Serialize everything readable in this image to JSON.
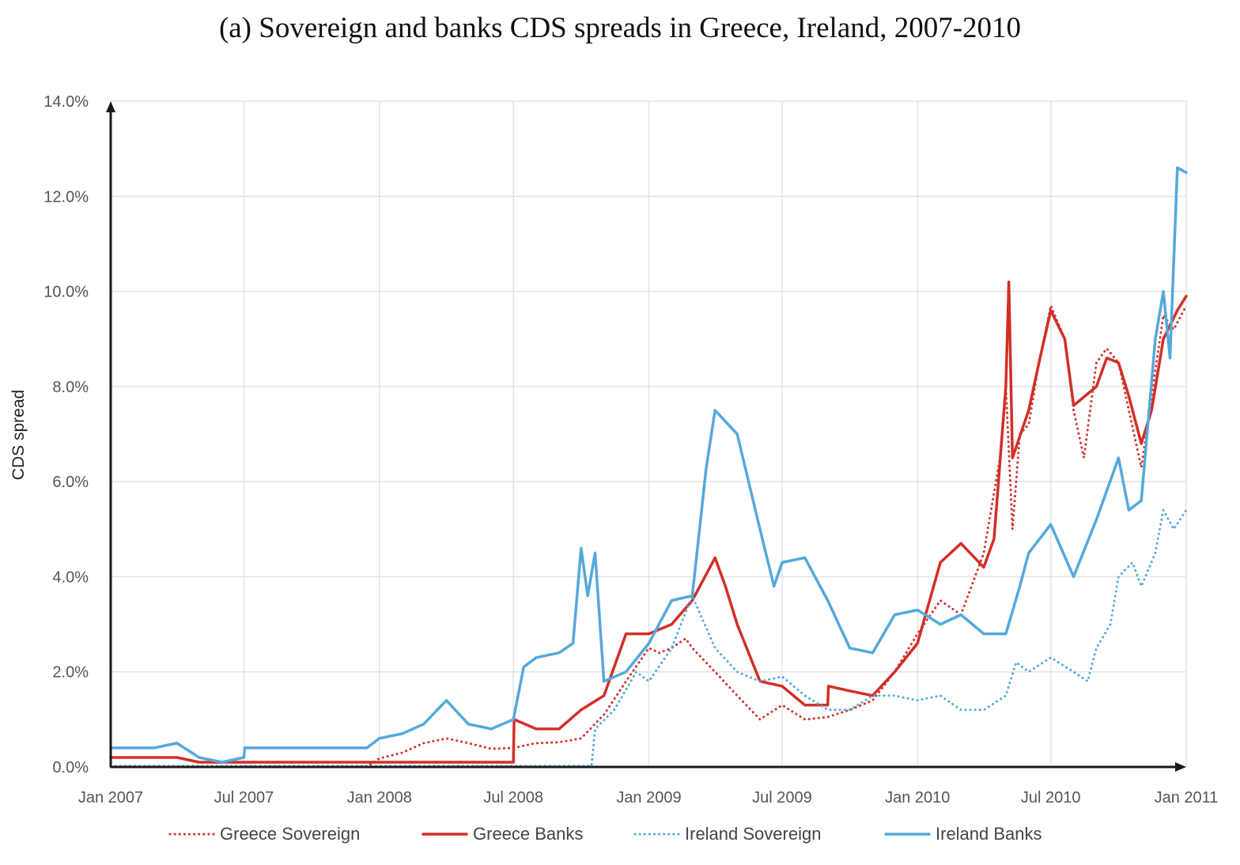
{
  "chart_data": {
    "type": "line",
    "title": "(a) Sovereign and banks CDS spreads in Greece, Ireland, 2007-2010",
    "xlabel": "",
    "ylabel": "CDS spread",
    "xlim": [
      "2007-01-01",
      "2011-01-01"
    ],
    "ylim": [
      0,
      14
    ],
    "x_ticks": [
      {
        "date": "2007-01-01",
        "label": "Jan 2007"
      },
      {
        "date": "2007-07-01",
        "label": "Jul 2007"
      },
      {
        "date": "2008-01-01",
        "label": "Jan 2008"
      },
      {
        "date": "2008-07-01",
        "label": "Jul 2008"
      },
      {
        "date": "2009-01-01",
        "label": "Jan 2009"
      },
      {
        "date": "2009-07-01",
        "label": "Jul 2009"
      },
      {
        "date": "2010-01-01",
        "label": "Jan 2010"
      },
      {
        "date": "2010-07-01",
        "label": "Jul 2010"
      },
      {
        "date": "2011-01-01",
        "label": "Jan 2011"
      }
    ],
    "y_ticks": [
      {
        "value": 0,
        "label": "0.0%"
      },
      {
        "value": 2,
        "label": "2.0%"
      },
      {
        "value": 4,
        "label": "4.0%"
      },
      {
        "value": 6,
        "label": "6.0%"
      },
      {
        "value": 8,
        "label": "8.0%"
      },
      {
        "value": 10,
        "label": "10.0%"
      },
      {
        "value": 12,
        "label": "12.0%"
      },
      {
        "value": 14,
        "label": "14.0%"
      }
    ],
    "grid": true,
    "legend_position": "bottom",
    "series": [
      {
        "name": "Greece Sovereign",
        "color": "#d22f27",
        "style": "dotted",
        "points": [
          [
            "2007-01-01",
            0.0
          ],
          [
            "2007-12-15",
            0.0
          ],
          [
            "2008-01-01",
            0.18
          ],
          [
            "2008-02-01",
            0.3
          ],
          [
            "2008-03-01",
            0.5
          ],
          [
            "2008-04-01",
            0.6
          ],
          [
            "2008-05-01",
            0.5
          ],
          [
            "2008-06-01",
            0.38
          ],
          [
            "2008-07-01",
            0.4
          ],
          [
            "2008-08-01",
            0.5
          ],
          [
            "2008-09-01",
            0.52
          ],
          [
            "2008-10-01",
            0.6
          ],
          [
            "2008-11-01",
            1.1
          ],
          [
            "2008-12-01",
            1.8
          ],
          [
            "2009-01-01",
            2.5
          ],
          [
            "2009-01-15",
            2.4
          ],
          [
            "2009-02-01",
            2.5
          ],
          [
            "2009-02-20",
            2.7
          ],
          [
            "2009-03-01",
            2.5
          ],
          [
            "2009-04-01",
            2.0
          ],
          [
            "2009-05-01",
            1.5
          ],
          [
            "2009-06-01",
            1.0
          ],
          [
            "2009-07-01",
            1.3
          ],
          [
            "2009-08-01",
            1.0
          ],
          [
            "2009-09-01",
            1.05
          ],
          [
            "2009-10-01",
            1.2
          ],
          [
            "2009-11-01",
            1.4
          ],
          [
            "2009-12-01",
            2.0
          ],
          [
            "2010-01-01",
            2.8
          ],
          [
            "2010-02-01",
            3.5
          ],
          [
            "2010-03-01",
            3.2
          ],
          [
            "2010-04-01",
            4.5
          ],
          [
            "2010-04-23",
            6.5
          ],
          [
            "2010-05-01",
            8.0
          ],
          [
            "2010-05-10",
            5.0
          ],
          [
            "2010-05-20",
            7.0
          ],
          [
            "2010-06-01",
            7.2
          ],
          [
            "2010-06-15",
            8.5
          ],
          [
            "2010-07-01",
            9.7
          ],
          [
            "2010-07-20",
            9.0
          ],
          [
            "2010-08-01",
            7.5
          ],
          [
            "2010-08-15",
            6.5
          ],
          [
            "2010-09-01",
            8.5
          ],
          [
            "2010-09-15",
            8.8
          ],
          [
            "2010-10-01",
            8.5
          ],
          [
            "2010-10-15",
            7.5
          ],
          [
            "2010-11-01",
            6.3
          ],
          [
            "2010-11-15",
            7.8
          ],
          [
            "2010-12-01",
            9.5
          ],
          [
            "2010-12-15",
            9.2
          ],
          [
            "2011-01-01",
            9.7
          ]
        ]
      },
      {
        "name": "Greece Banks",
        "color": "#d22f27",
        "style": "solid",
        "points": [
          [
            "2007-01-01",
            0.2
          ],
          [
            "2007-04-01",
            0.2
          ],
          [
            "2007-05-01",
            0.1
          ],
          [
            "2008-07-01",
            0.1
          ],
          [
            "2008-07-02",
            1.0
          ],
          [
            "2008-08-01",
            0.8
          ],
          [
            "2008-09-01",
            0.8
          ],
          [
            "2008-10-01",
            1.2
          ],
          [
            "2008-11-01",
            1.5
          ],
          [
            "2008-12-01",
            2.8
          ],
          [
            "2009-01-01",
            2.8
          ],
          [
            "2009-02-01",
            3.0
          ],
          [
            "2009-03-01",
            3.5
          ],
          [
            "2009-04-01",
            4.4
          ],
          [
            "2009-04-15",
            3.8
          ],
          [
            "2009-05-01",
            3.0
          ],
          [
            "2009-06-01",
            1.8
          ],
          [
            "2009-07-01",
            1.7
          ],
          [
            "2009-08-01",
            1.3
          ],
          [
            "2009-09-01",
            1.3
          ],
          [
            "2009-09-02",
            1.7
          ],
          [
            "2009-10-01",
            1.6
          ],
          [
            "2009-11-01",
            1.5
          ],
          [
            "2009-12-01",
            2.0
          ],
          [
            "2010-01-01",
            2.6
          ],
          [
            "2010-02-01",
            4.3
          ],
          [
            "2010-03-01",
            4.7
          ],
          [
            "2010-04-01",
            4.2
          ],
          [
            "2010-04-15",
            4.8
          ],
          [
            "2010-05-01",
            8.0
          ],
          [
            "2010-05-05",
            10.2
          ],
          [
            "2010-05-10",
            6.5
          ],
          [
            "2010-06-01",
            7.5
          ],
          [
            "2010-06-15",
            8.5
          ],
          [
            "2010-07-01",
            9.6
          ],
          [
            "2010-07-20",
            9.0
          ],
          [
            "2010-08-01",
            7.6
          ],
          [
            "2010-09-01",
            8.0
          ],
          [
            "2010-09-15",
            8.6
          ],
          [
            "2010-10-01",
            8.5
          ],
          [
            "2010-10-15",
            7.8
          ],
          [
            "2010-11-01",
            6.8
          ],
          [
            "2010-11-15",
            7.5
          ],
          [
            "2010-12-01",
            9.0
          ],
          [
            "2010-12-20",
            9.6
          ],
          [
            "2011-01-01",
            9.9
          ]
        ]
      },
      {
        "name": "Ireland Sovereign",
        "color": "#55a8db",
        "style": "dotted",
        "points": [
          [
            "2007-01-01",
            0.02
          ],
          [
            "2008-10-15",
            0.02
          ],
          [
            "2008-10-20",
            0.8
          ],
          [
            "2008-11-15",
            1.2
          ],
          [
            "2008-12-15",
            2.0
          ],
          [
            "2009-01-01",
            1.8
          ],
          [
            "2009-02-01",
            2.5
          ],
          [
            "2009-03-01",
            3.6
          ],
          [
            "2009-04-01",
            2.5
          ],
          [
            "2009-05-01",
            2.0
          ],
          [
            "2009-06-01",
            1.8
          ],
          [
            "2009-07-01",
            1.9
          ],
          [
            "2009-08-01",
            1.5
          ],
          [
            "2009-09-01",
            1.2
          ],
          [
            "2009-10-01",
            1.2
          ],
          [
            "2009-11-01",
            1.5
          ],
          [
            "2009-12-01",
            1.5
          ],
          [
            "2010-01-01",
            1.4
          ],
          [
            "2010-02-01",
            1.5
          ],
          [
            "2010-03-01",
            1.2
          ],
          [
            "2010-04-01",
            1.2
          ],
          [
            "2010-05-01",
            1.5
          ],
          [
            "2010-05-15",
            2.2
          ],
          [
            "2010-06-01",
            2.0
          ],
          [
            "2010-07-01",
            2.3
          ],
          [
            "2010-08-01",
            2.0
          ],
          [
            "2010-08-20",
            1.8
          ],
          [
            "2010-09-01",
            2.5
          ],
          [
            "2010-09-20",
            3.0
          ],
          [
            "2010-10-01",
            4.0
          ],
          [
            "2010-10-20",
            4.3
          ],
          [
            "2010-11-01",
            3.8
          ],
          [
            "2010-11-20",
            4.5
          ],
          [
            "2010-12-01",
            5.4
          ],
          [
            "2010-12-15",
            5.0
          ],
          [
            "2011-01-01",
            5.4
          ]
        ]
      },
      {
        "name": "Ireland Banks",
        "color": "#55a8db",
        "style": "solid",
        "points": [
          [
            "2007-01-01",
            0.4
          ],
          [
            "2007-03-01",
            0.4
          ],
          [
            "2007-04-01",
            0.5
          ],
          [
            "2007-05-01",
            0.2
          ],
          [
            "2007-06-01",
            0.1
          ],
          [
            "2007-07-01",
            0.2
          ],
          [
            "2007-07-02",
            0.4
          ],
          [
            "2007-12-15",
            0.4
          ],
          [
            "2008-01-01",
            0.6
          ],
          [
            "2008-02-01",
            0.7
          ],
          [
            "2008-03-01",
            0.9
          ],
          [
            "2008-04-01",
            1.4
          ],
          [
            "2008-05-01",
            0.9
          ],
          [
            "2008-06-01",
            0.8
          ],
          [
            "2008-07-01",
            1.0
          ],
          [
            "2008-07-15",
            2.1
          ],
          [
            "2008-08-01",
            2.3
          ],
          [
            "2008-09-01",
            2.4
          ],
          [
            "2008-09-20",
            2.6
          ],
          [
            "2008-10-01",
            4.6
          ],
          [
            "2008-10-10",
            3.6
          ],
          [
            "2008-10-20",
            4.5
          ],
          [
            "2008-11-01",
            1.8
          ],
          [
            "2008-12-01",
            2.0
          ],
          [
            "2009-01-01",
            2.6
          ],
          [
            "2009-02-01",
            3.5
          ],
          [
            "2009-03-01",
            3.6
          ],
          [
            "2009-03-20",
            6.3
          ],
          [
            "2009-04-01",
            7.5
          ],
          [
            "2009-05-01",
            7.0
          ],
          [
            "2009-06-01",
            5.0
          ],
          [
            "2009-06-20",
            3.8
          ],
          [
            "2009-07-01",
            4.3
          ],
          [
            "2009-08-01",
            4.4
          ],
          [
            "2009-09-01",
            3.5
          ],
          [
            "2009-10-01",
            2.5
          ],
          [
            "2009-11-01",
            2.4
          ],
          [
            "2009-12-01",
            3.2
          ],
          [
            "2010-01-01",
            3.3
          ],
          [
            "2010-02-01",
            3.0
          ],
          [
            "2010-03-01",
            3.2
          ],
          [
            "2010-04-01",
            2.8
          ],
          [
            "2010-05-01",
            2.8
          ],
          [
            "2010-05-20",
            3.8
          ],
          [
            "2010-06-01",
            4.5
          ],
          [
            "2010-07-01",
            5.1
          ],
          [
            "2010-08-01",
            4.0
          ],
          [
            "2010-09-01",
            5.2
          ],
          [
            "2010-10-01",
            6.5
          ],
          [
            "2010-10-15",
            5.4
          ],
          [
            "2010-11-01",
            5.6
          ],
          [
            "2010-11-20",
            9.0
          ],
          [
            "2010-12-01",
            10.0
          ],
          [
            "2010-12-10",
            8.6
          ],
          [
            "2010-12-20",
            12.6
          ],
          [
            "2011-01-01",
            12.5
          ]
        ]
      }
    ]
  }
}
